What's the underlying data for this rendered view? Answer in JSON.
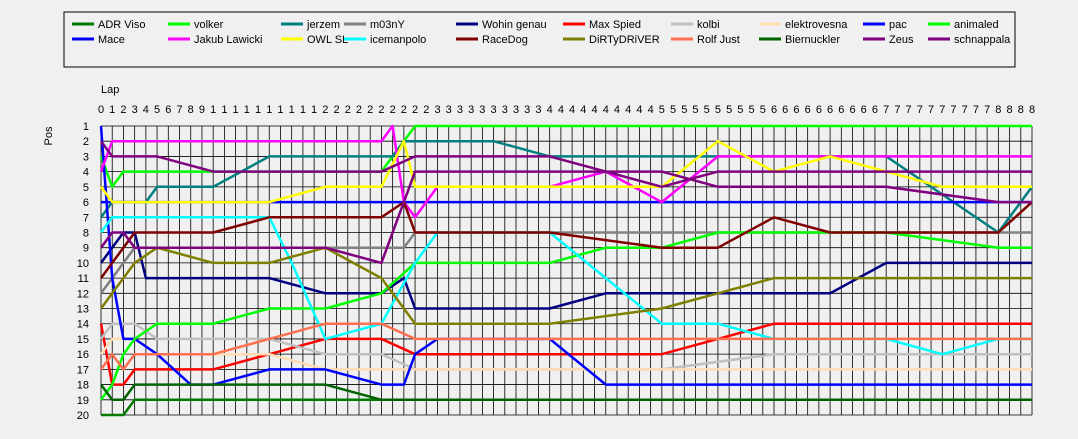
{
  "chart_data": {
    "type": "line",
    "title": "",
    "xlabel": "Lap",
    "ylabel": "Pos",
    "x_ticks": [
      "0",
      "1",
      "2",
      "3",
      "4",
      "5",
      "6",
      "7",
      "8",
      "9",
      "1",
      "1",
      "1",
      "1",
      "1",
      "1",
      "1",
      "1",
      "1",
      "1",
      "2",
      "2",
      "2",
      "2",
      "2",
      "2",
      "2",
      "2",
      "2",
      "2",
      "3",
      "3",
      "3",
      "3",
      "3",
      "3",
      "3",
      "3",
      "3",
      "3",
      "4",
      "4",
      "4",
      "4",
      "4",
      "4",
      "4",
      "4",
      "4",
      "4",
      "5",
      "5",
      "5",
      "5",
      "5",
      "5",
      "5",
      "5",
      "5",
      "5",
      "6",
      "6",
      "6",
      "6",
      "6",
      "6",
      "6",
      "6",
      "6",
      "6",
      "7",
      "7",
      "7",
      "7",
      "7",
      "7",
      "7",
      "7",
      "7",
      "7",
      "8",
      "8",
      "8",
      "8"
    ],
    "y_ticks": [
      "1",
      "2",
      "3",
      "4",
      "5",
      "6",
      "7",
      "8",
      "9",
      "10",
      "11",
      "12",
      "13",
      "14",
      "15",
      "16",
      "17",
      "18",
      "19",
      "20"
    ],
    "xlim": [
      0,
      83
    ],
    "ylim": [
      1,
      20
    ],
    "y_inverted": true,
    "grid": true,
    "legend_position": "top",
    "series": [
      {
        "name": "ADR Viso",
        "color": "#007a00",
        "x": [
          0,
          1,
          2,
          3,
          10,
          20,
          27,
          28,
          30,
          50,
          51,
          53,
          55,
          60,
          70,
          75,
          78,
          80,
          83
        ],
        "y": [
          20,
          20,
          20,
          19,
          19,
          19,
          19,
          19,
          19,
          19,
          19,
          19,
          19,
          19,
          19,
          19,
          19,
          19,
          19
        ]
      },
      {
        "name": "volker",
        "color": "#00ff00",
        "x": [
          0,
          1,
          2,
          3,
          5,
          10,
          20,
          25,
          26,
          27,
          28,
          30,
          40,
          48,
          50,
          60,
          70,
          80,
          83
        ],
        "y": [
          3,
          5,
          4,
          4,
          4,
          4,
          4,
          4,
          3,
          2,
          1,
          1,
          1,
          1,
          1,
          1,
          1,
          1,
          1
        ]
      },
      {
        "name": "jerzem",
        "color": "#008080",
        "x": [
          0,
          1,
          2,
          4,
          5,
          10,
          15,
          20,
          25,
          26,
          27,
          28,
          30,
          35,
          40,
          50,
          60,
          70,
          80,
          83
        ],
        "y": [
          7,
          6,
          6,
          6,
          5,
          5,
          3,
          3,
          3,
          3,
          2,
          2,
          2,
          2,
          3,
          3,
          3,
          3,
          8,
          5
        ]
      },
      {
        "name": "m03nY",
        "color": "#808080",
        "x": [
          0,
          1,
          2,
          3,
          10,
          20,
          25,
          27,
          28,
          30,
          40,
          50,
          60,
          70,
          80,
          83
        ],
        "y": [
          12,
          11,
          10,
          9,
          9,
          9,
          9,
          9,
          8,
          8,
          8,
          8,
          8,
          8,
          8,
          8
        ]
      },
      {
        "name": "Wohin genau",
        "color": "#000080",
        "x": [
          0,
          1,
          2,
          3,
          4,
          10,
          15,
          20,
          25,
          27,
          28,
          30,
          40,
          45,
          50,
          55,
          60,
          65,
          70,
          75,
          80,
          83
        ],
        "y": [
          10,
          9,
          8,
          8,
          11,
          11,
          11,
          12,
          12,
          11,
          13,
          13,
          13,
          12,
          12,
          12,
          12,
          12,
          10,
          10,
          10,
          10
        ]
      },
      {
        "name": "Max Spied",
        "color": "#ff0000",
        "x": [
          0,
          1,
          2,
          3,
          5,
          10,
          15,
          20,
          25,
          28,
          30,
          40,
          50,
          55,
          60,
          70,
          80,
          83
        ],
        "y": [
          14,
          18,
          18,
          17,
          17,
          17,
          16,
          15,
          15,
          16,
          16,
          16,
          16,
          15,
          14,
          14,
          14,
          14
        ]
      },
      {
        "name": "kolbi",
        "color": "#c0c0c0",
        "x": [
          0,
          1,
          2,
          3,
          5,
          10,
          15,
          20,
          25,
          28,
          30,
          40,
          50,
          60,
          70,
          80,
          83
        ],
        "y": [
          15,
          14,
          14,
          14,
          15,
          15,
          15,
          16,
          16,
          17,
          17,
          17,
          17,
          16,
          16,
          16,
          16
        ]
      },
      {
        "name": "elektrovesna",
        "color": "#ffdcb4",
        "x": [
          0,
          1,
          2,
          3,
          5,
          10,
          15,
          20,
          25,
          28,
          30,
          40,
          50,
          60,
          70,
          80,
          83
        ],
        "y": [
          16,
          15,
          15,
          15,
          16,
          16,
          16,
          17,
          17,
          17,
          17,
          17,
          17,
          17,
          17,
          17,
          17
        ]
      },
      {
        "name": "pac",
        "color": "#0000ff",
        "x": [
          0,
          1,
          2,
          3,
          5,
          8,
          10,
          15,
          20,
          25,
          27,
          28,
          30,
          40,
          45,
          50,
          55,
          60,
          70,
          80,
          83
        ],
        "y": [
          1,
          11,
          15,
          15,
          16,
          18,
          18,
          17,
          17,
          18,
          18,
          16,
          15,
          15,
          18,
          18,
          18,
          18,
          18,
          18,
          18
        ]
      },
      {
        "name": "animaled",
        "color": "#00ff00",
        "x": [
          0,
          1,
          2,
          3,
          5,
          10,
          15,
          20,
          25,
          28,
          30,
          40,
          45,
          50,
          55,
          60,
          70,
          80,
          83
        ],
        "y": [
          19,
          18,
          16,
          15,
          14,
          14,
          13,
          13,
          12,
          10,
          10,
          10,
          9,
          9,
          8,
          8,
          8,
          9,
          9
        ]
      },
      {
        "name": "Mace",
        "color": "#0000ff",
        "x": [
          0,
          1,
          2,
          3,
          5,
          10,
          15,
          20,
          28,
          30,
          40,
          50,
          60,
          70,
          80,
          83
        ],
        "y": [
          6,
          6,
          6,
          6,
          6,
          6,
          6,
          6,
          6,
          6,
          6,
          6,
          6,
          6,
          6,
          6
        ]
      },
      {
        "name": "Jakub Lawicki",
        "color": "#ff00ff",
        "x": [
          0,
          1,
          2,
          3,
          5,
          10,
          15,
          20,
          25,
          26,
          27,
          28,
          30,
          40,
          45,
          50,
          55,
          60,
          70,
          80,
          83
        ],
        "y": [
          4,
          2,
          2,
          2,
          2,
          2,
          2,
          2,
          2,
          1,
          6,
          7,
          5,
          5,
          4,
          6,
          3,
          3,
          3,
          3,
          3
        ]
      },
      {
        "name": "OWL SL",
        "color": "#ffff00",
        "x": [
          0,
          1,
          2,
          3,
          5,
          10,
          15,
          20,
          25,
          27,
          28,
          30,
          40,
          50,
          55,
          60,
          65,
          70,
          75,
          80,
          83
        ],
        "y": [
          5,
          6,
          6,
          6,
          6,
          6,
          6,
          5,
          5,
          2,
          5,
          5,
          5,
          5,
          2,
          4,
          3,
          4,
          5,
          5,
          5
        ]
      },
      {
        "name": "icemanpolo",
        "color": "#00ffff",
        "x": [
          0,
          1,
          2,
          3,
          5,
          10,
          15,
          17,
          20,
          25,
          28,
          30,
          40,
          45,
          50,
          55,
          60,
          70,
          75,
          80,
          83
        ],
        "y": [
          8,
          7,
          7,
          7,
          7,
          7,
          7,
          10,
          15,
          14,
          10,
          8,
          8,
          11,
          14,
          14,
          15,
          15,
          16,
          15,
          15
        ]
      },
      {
        "name": "RaceDog",
        "color": "#800000",
        "x": [
          0,
          1,
          2,
          3,
          5,
          10,
          15,
          20,
          25,
          27,
          28,
          30,
          40,
          50,
          55,
          60,
          65,
          70,
          80,
          83
        ],
        "y": [
          11,
          10,
          9,
          8,
          8,
          8,
          7,
          7,
          7,
          6,
          8,
          8,
          8,
          9,
          9,
          7,
          8,
          8,
          8,
          6
        ]
      },
      {
        "name": "DiRTyDRiVER",
        "color": "#808000",
        "x": [
          0,
          1,
          2,
          3,
          5,
          10,
          15,
          20,
          25,
          28,
          30,
          40,
          50,
          55,
          60,
          70,
          80,
          83
        ],
        "y": [
          13,
          12,
          11,
          10,
          9,
          10,
          10,
          9,
          11,
          14,
          14,
          14,
          13,
          12,
          11,
          11,
          11,
          11
        ]
      },
      {
        "name": "Rolf Just",
        "color": "#ff7050",
        "x": [
          0,
          1,
          2,
          3,
          5,
          10,
          15,
          20,
          25,
          28,
          30,
          40,
          50,
          60,
          70,
          80,
          83
        ],
        "y": [
          17,
          16,
          17,
          16,
          16,
          16,
          15,
          14,
          14,
          15,
          15,
          15,
          15,
          15,
          15,
          15,
          15
        ]
      },
      {
        "name": "Biernuckler",
        "color": "#006400",
        "x": [
          0,
          1,
          2,
          3,
          5,
          10,
          15,
          20,
          25,
          28,
          30,
          40,
          50,
          60,
          70,
          80,
          83
        ],
        "y": [
          18,
          19,
          19,
          18,
          18,
          18,
          18,
          18,
          19,
          19,
          19,
          19,
          19,
          19,
          19,
          19,
          19
        ]
      },
      {
        "name": "Zeus",
        "color": "#800080",
        "x": [
          0,
          1,
          2,
          3,
          5,
          10,
          15,
          20,
          25,
          28,
          30,
          40,
          45,
          50,
          55,
          60,
          70,
          80,
          83
        ],
        "y": [
          9,
          8,
          8,
          9,
          9,
          9,
          9,
          9,
          10,
          4,
          4,
          4,
          4,
          5,
          4,
          4,
          4,
          4,
          4
        ]
      },
      {
        "name": "schnappala",
        "color": "#800080",
        "x": [
          0,
          1,
          2,
          3,
          5,
          10,
          15,
          20,
          25,
          28,
          30,
          40,
          45,
          50,
          55,
          60,
          70,
          80,
          83
        ],
        "y": [
          2,
          3,
          3,
          3,
          3,
          4,
          4,
          4,
          4,
          3,
          3,
          3,
          4,
          4,
          5,
          5,
          5,
          6,
          6
        ]
      }
    ]
  }
}
